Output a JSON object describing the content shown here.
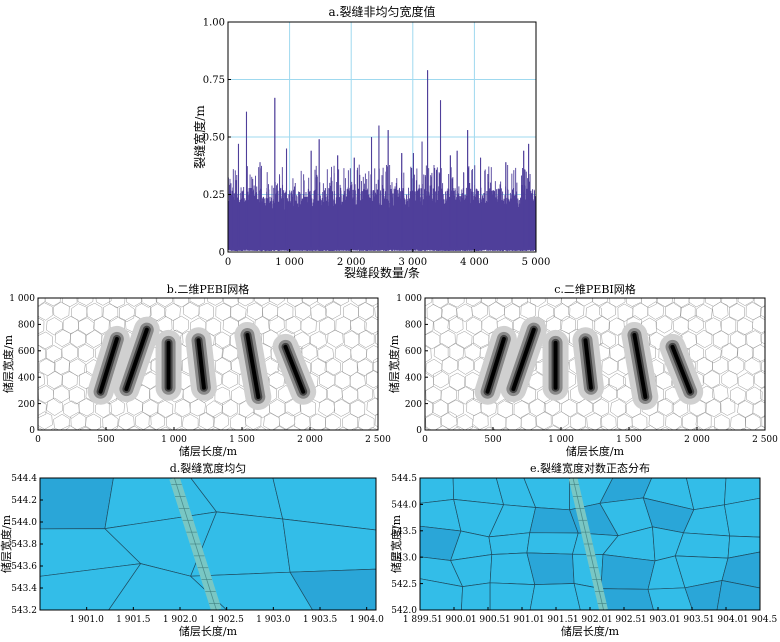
{
  "colors": {
    "spikes": "#4f3f9a",
    "grid": "#9fd9ef",
    "cell_fill": "#33bde8",
    "cell_fill_dark": "#2aa6d8",
    "fracture_band": "#79c7c4",
    "mesh_line": "#777777"
  },
  "chart_data": [
    {
      "id": "a",
      "type": "line",
      "title": "a.裂缝非均匀宽度值",
      "xlabel": "裂缝段数量/条",
      "ylabel": "裂缝宽度/m",
      "xlim": [
        0,
        5000
      ],
      "ylim": [
        0,
        1.0
      ],
      "xticks": [
        0,
        1000,
        2000,
        3000,
        4000,
        5000
      ],
      "xtick_labels": [
        "0",
        "1 000",
        "2 000",
        "3 000",
        "4 000",
        "5 000"
      ],
      "yticks": [
        0,
        0.25,
        0.5,
        0.75,
        1.0
      ],
      "ytick_labels": [
        "0",
        "0.25",
        "0.50",
        "0.75",
        "1.00"
      ],
      "grid": true,
      "n_points": 5000,
      "baseline_band": [
        0.02,
        0.24
      ],
      "peaks": [
        {
          "x": 80,
          "y": 0.28
        },
        {
          "x": 170,
          "y": 0.47
        },
        {
          "x": 300,
          "y": 0.61
        },
        {
          "x": 520,
          "y": 0.39
        },
        {
          "x": 760,
          "y": 0.67
        },
        {
          "x": 950,
          "y": 0.45
        },
        {
          "x": 1350,
          "y": 0.44
        },
        {
          "x": 1480,
          "y": 0.49
        },
        {
          "x": 1780,
          "y": 0.42
        },
        {
          "x": 2050,
          "y": 0.41
        },
        {
          "x": 2330,
          "y": 0.5
        },
        {
          "x": 2450,
          "y": 0.55
        },
        {
          "x": 2600,
          "y": 0.53
        },
        {
          "x": 2820,
          "y": 0.43
        },
        {
          "x": 3010,
          "y": 0.43
        },
        {
          "x": 3150,
          "y": 0.48
        },
        {
          "x": 3240,
          "y": 0.79
        },
        {
          "x": 3450,
          "y": 0.66
        },
        {
          "x": 3610,
          "y": 0.42
        },
        {
          "x": 3720,
          "y": 0.44
        },
        {
          "x": 3890,
          "y": 0.53
        },
        {
          "x": 4100,
          "y": 0.41
        },
        {
          "x": 4510,
          "y": 0.39
        },
        {
          "x": 4800,
          "y": 0.44
        },
        {
          "x": 4880,
          "y": 0.47
        }
      ]
    },
    {
      "id": "b",
      "type": "mesh",
      "title": "b.二维PEBI网格",
      "xlabel": "储层长度/m",
      "ylabel": "储层宽度/m",
      "xlim": [
        0,
        2500
      ],
      "ylim": [
        0,
        1000
      ],
      "xticks": [
        0,
        500,
        1000,
        1500,
        2000,
        2500
      ],
      "xtick_labels": [
        "0",
        "500",
        "1 000",
        "1 500",
        "2 000",
        "2 500"
      ],
      "yticks": [
        0,
        200,
        400,
        600,
        800,
        1000
      ],
      "ytick_labels": [
        "0",
        "200",
        "400",
        "600",
        "800",
        "1 000"
      ],
      "fractures": [
        {
          "x1": 460,
          "y1": 290,
          "x2": 580,
          "y2": 690
        },
        {
          "x1": 650,
          "y1": 310,
          "x2": 800,
          "y2": 760
        },
        {
          "x1": 960,
          "y1": 320,
          "x2": 960,
          "y2": 660
        },
        {
          "x1": 1220,
          "y1": 320,
          "x2": 1180,
          "y2": 680
        },
        {
          "x1": 1620,
          "y1": 250,
          "x2": 1540,
          "y2": 720
        },
        {
          "x1": 1950,
          "y1": 290,
          "x2": 1820,
          "y2": 630
        }
      ]
    },
    {
      "id": "c",
      "type": "mesh",
      "title": "c.二维PEBI网格",
      "xlabel": "储层长度/m",
      "ylabel": "储层宽度/m",
      "xlim": [
        0,
        2500
      ],
      "ylim": [
        0,
        1000
      ],
      "xticks": [
        0,
        500,
        1000,
        1500,
        2000,
        2500
      ],
      "xtick_labels": [
        "0",
        "500",
        "1 000",
        "1 500",
        "2 000",
        "2 500"
      ],
      "yticks": [
        0,
        200,
        400,
        600,
        800,
        1000
      ],
      "ytick_labels": [
        "0",
        "200",
        "400",
        "600",
        "800",
        "1 000"
      ],
      "fractures": [
        {
          "x1": 460,
          "y1": 290,
          "x2": 580,
          "y2": 690
        },
        {
          "x1": 650,
          "y1": 310,
          "x2": 800,
          "y2": 760
        },
        {
          "x1": 960,
          "y1": 320,
          "x2": 960,
          "y2": 660
        },
        {
          "x1": 1220,
          "y1": 320,
          "x2": 1180,
          "y2": 680
        },
        {
          "x1": 1620,
          "y1": 250,
          "x2": 1540,
          "y2": 720
        },
        {
          "x1": 1950,
          "y1": 290,
          "x2": 1820,
          "y2": 630
        }
      ]
    },
    {
      "id": "d",
      "type": "mesh",
      "title": "d.裂缝宽度均匀",
      "xlabel": "储层长度/m",
      "ylabel": "储层宽度/m",
      "xlim": [
        1900.5,
        1904.1
      ],
      "ylim": [
        543.2,
        544.4
      ],
      "xticks": [
        1901.0,
        1901.5,
        1902.0,
        1902.5,
        1903.0,
        1903.5,
        1904.0
      ],
      "xtick_labels": [
        "1 901.0",
        "1 901.5",
        "1 902.0",
        "1 902.5",
        "1 903.0",
        "1 903.5",
        "1 904.0"
      ],
      "yticks": [
        543.2,
        543.4,
        543.6,
        543.8,
        544.0,
        544.2,
        544.4
      ],
      "ytick_labels": [
        "543.2",
        "543.4",
        "543.6",
        "543.8",
        "544.0",
        "544.2",
        "544.4"
      ],
      "band": {
        "x1": 1901.94,
        "y1": 544.4,
        "x2": 1902.39,
        "y2": 543.2,
        "width": 0.07
      }
    },
    {
      "id": "e",
      "type": "mesh",
      "title": "e.裂缝宽度对数正态分布",
      "xlabel": "储层长度/m",
      "ylabel": "储层宽度/m",
      "xlim": [
        1899.5,
        1904.5
      ],
      "ylim": [
        542.0,
        544.5
      ],
      "xticks": [
        1899.5,
        1900.0,
        1900.5,
        1901.0,
        1901.5,
        1902.0,
        1902.5,
        1903.0,
        1903.5,
        1904.0,
        1904.5
      ],
      "xtick_labels": [
        "1 899.5",
        "1 900.0",
        "1 900.5",
        "1 901.0",
        "1 901.5",
        "1 902.0",
        "1 902.5",
        "1 903.0",
        "1 903.5",
        "1 904.0",
        "1 904.5"
      ],
      "yticks": [
        542.0,
        542.5,
        543.0,
        543.5,
        544.0,
        544.5
      ],
      "ytick_labels": [
        "542.0",
        "542.5",
        "543.0",
        "543.5",
        "544.0",
        "544.5"
      ],
      "band": {
        "x1": 1901.75,
        "y1": 544.5,
        "x2": 1902.2,
        "y2": 542.0,
        "width": 0.07
      }
    }
  ]
}
